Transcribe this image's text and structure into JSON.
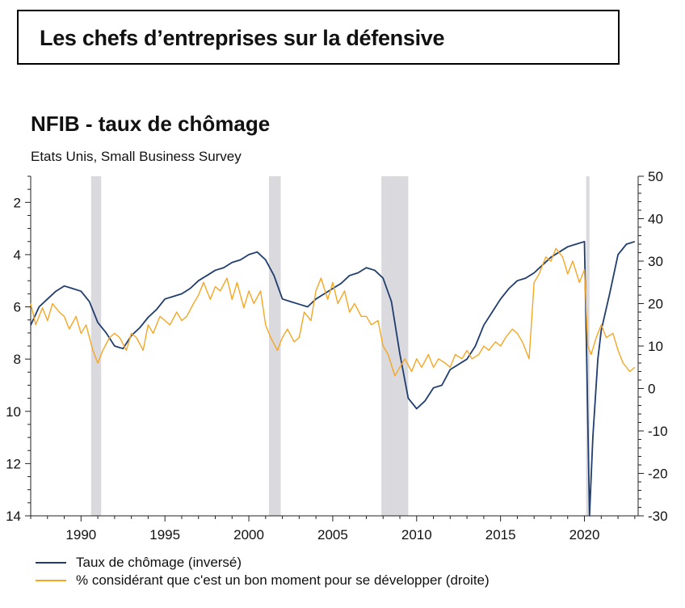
{
  "headline": "Les chefs d’entreprises sur la défensive",
  "chart_data": {
    "type": "line",
    "title": "NFIB - taux de chômage",
    "subtitle": "Etats Unis, Small Business Survey",
    "x_range": [
      1987.0,
      2023.2
    ],
    "x_ticks": [
      1990,
      1995,
      2000,
      2005,
      2010,
      2015,
      2020
    ],
    "y_left": {
      "range": [
        14,
        1
      ],
      "inverted": true,
      "ticks": [
        2,
        4,
        6,
        8,
        10,
        12,
        14
      ]
    },
    "y_right": {
      "range": [
        -30,
        50
      ],
      "ticks": [
        50,
        40,
        30,
        20,
        10,
        0,
        -10,
        -20,
        -30
      ]
    },
    "recessions": [
      [
        1990.6,
        1991.2
      ],
      [
        2001.2,
        2001.9
      ],
      [
        2007.9,
        2009.5
      ],
      [
        2020.1,
        2020.3
      ]
    ],
    "grid": false,
    "legend_position": "bottom",
    "series": [
      {
        "name": "Taux de chômage (inversé)",
        "axis": "left",
        "color": "#1f3d6e",
        "x": [
          1987.0,
          1987.5,
          1988.0,
          1988.5,
          1989.0,
          1989.5,
          1990.0,
          1990.5,
          1991.0,
          1991.5,
          1992.0,
          1992.5,
          1993.0,
          1993.5,
          1994.0,
          1994.5,
          1995.0,
          1995.5,
          1996.0,
          1996.5,
          1997.0,
          1997.5,
          1998.0,
          1998.5,
          1999.0,
          1999.5,
          2000.0,
          2000.5,
          2001.0,
          2001.5,
          2002.0,
          2002.5,
          2003.0,
          2003.5,
          2004.0,
          2004.5,
          2005.0,
          2005.5,
          2006.0,
          2006.5,
          2007.0,
          2007.5,
          2008.0,
          2008.5,
          2009.0,
          2009.5,
          2010.0,
          2010.5,
          2011.0,
          2011.5,
          2012.0,
          2012.5,
          2013.0,
          2013.5,
          2014.0,
          2014.5,
          2015.0,
          2015.5,
          2016.0,
          2016.5,
          2017.0,
          2017.5,
          2018.0,
          2018.5,
          2019.0,
          2019.5,
          2020.0,
          2020.15,
          2020.3,
          2020.5,
          2020.8,
          2021.0,
          2021.5,
          2022.0,
          2022.5,
          2023.0
        ],
        "values": [
          6.7,
          6.0,
          5.7,
          5.4,
          5.2,
          5.3,
          5.4,
          5.8,
          6.6,
          7.0,
          7.5,
          7.6,
          7.1,
          6.8,
          6.4,
          6.1,
          5.7,
          5.6,
          5.5,
          5.3,
          5.0,
          4.8,
          4.6,
          4.5,
          4.3,
          4.2,
          4.0,
          3.9,
          4.2,
          4.8,
          5.7,
          5.8,
          5.9,
          6.0,
          5.7,
          5.5,
          5.3,
          5.1,
          4.8,
          4.7,
          4.5,
          4.6,
          4.9,
          5.8,
          7.8,
          9.5,
          9.9,
          9.6,
          9.1,
          9.0,
          8.4,
          8.2,
          8.0,
          7.5,
          6.7,
          6.2,
          5.7,
          5.3,
          5.0,
          4.9,
          4.7,
          4.4,
          4.1,
          3.9,
          3.7,
          3.6,
          3.5,
          8.5,
          14.0,
          11.0,
          8.0,
          6.9,
          5.5,
          4.0,
          3.6,
          3.5
        ]
      },
      {
        "name": "% considérant que c'est un bon moment pour se développer (droite)",
        "axis": "right",
        "color": "#f5a623",
        "x": [
          1987.0,
          1987.3,
          1987.7,
          1988.0,
          1988.3,
          1988.7,
          1989.0,
          1989.3,
          1989.7,
          1990.0,
          1990.3,
          1990.7,
          1991.0,
          1991.3,
          1991.7,
          1992.0,
          1992.3,
          1992.7,
          1993.0,
          1993.3,
          1993.7,
          1994.0,
          1994.3,
          1994.7,
          1995.0,
          1995.3,
          1995.7,
          1996.0,
          1996.3,
          1996.7,
          1997.0,
          1997.3,
          1997.7,
          1998.0,
          1998.3,
          1998.7,
          1999.0,
          1999.3,
          1999.7,
          2000.0,
          2000.3,
          2000.7,
          2001.0,
          2001.3,
          2001.7,
          2002.0,
          2002.3,
          2002.7,
          2003.0,
          2003.3,
          2003.7,
          2004.0,
          2004.3,
          2004.7,
          2005.0,
          2005.3,
          2005.7,
          2006.0,
          2006.3,
          2006.7,
          2007.0,
          2007.3,
          2007.7,
          2008.0,
          2008.3,
          2008.7,
          2009.0,
          2009.3,
          2009.7,
          2010.0,
          2010.3,
          2010.7,
          2011.0,
          2011.3,
          2011.7,
          2012.0,
          2012.3,
          2012.7,
          2013.0,
          2013.3,
          2013.7,
          2014.0,
          2014.3,
          2014.7,
          2015.0,
          2015.3,
          2015.7,
          2016.0,
          2016.3,
          2016.7,
          2017.0,
          2017.3,
          2017.7,
          2018.0,
          2018.3,
          2018.7,
          2019.0,
          2019.3,
          2019.7,
          2020.0,
          2020.2,
          2020.4,
          2020.7,
          2021.0,
          2021.3,
          2021.7,
          2022.0,
          2022.3,
          2022.7,
          2023.0
        ],
        "values": [
          20,
          15,
          19,
          16,
          20,
          18,
          17,
          14,
          17,
          13,
          15,
          9,
          6,
          9,
          12,
          13,
          12,
          9,
          13,
          12,
          9,
          15,
          13,
          17,
          16,
          15,
          18,
          16,
          17,
          20,
          22,
          25,
          21,
          24,
          23,
          26,
          21,
          25,
          19,
          23,
          20,
          23,
          15,
          12,
          9,
          12,
          14,
          11,
          12,
          18,
          16,
          23,
          26,
          21,
          25,
          20,
          23,
          18,
          20,
          17,
          17,
          15,
          16,
          10,
          8,
          3,
          5,
          7,
          4,
          7,
          5,
          8,
          5,
          7,
          6,
          5,
          8,
          7,
          9,
          7,
          8,
          10,
          9,
          11,
          10,
          12,
          14,
          13,
          11,
          7,
          25,
          27,
          31,
          30,
          33,
          31,
          27,
          30,
          25,
          28,
          10,
          8,
          12,
          15,
          12,
          13,
          9,
          6,
          4,
          5
        ]
      }
    ]
  }
}
